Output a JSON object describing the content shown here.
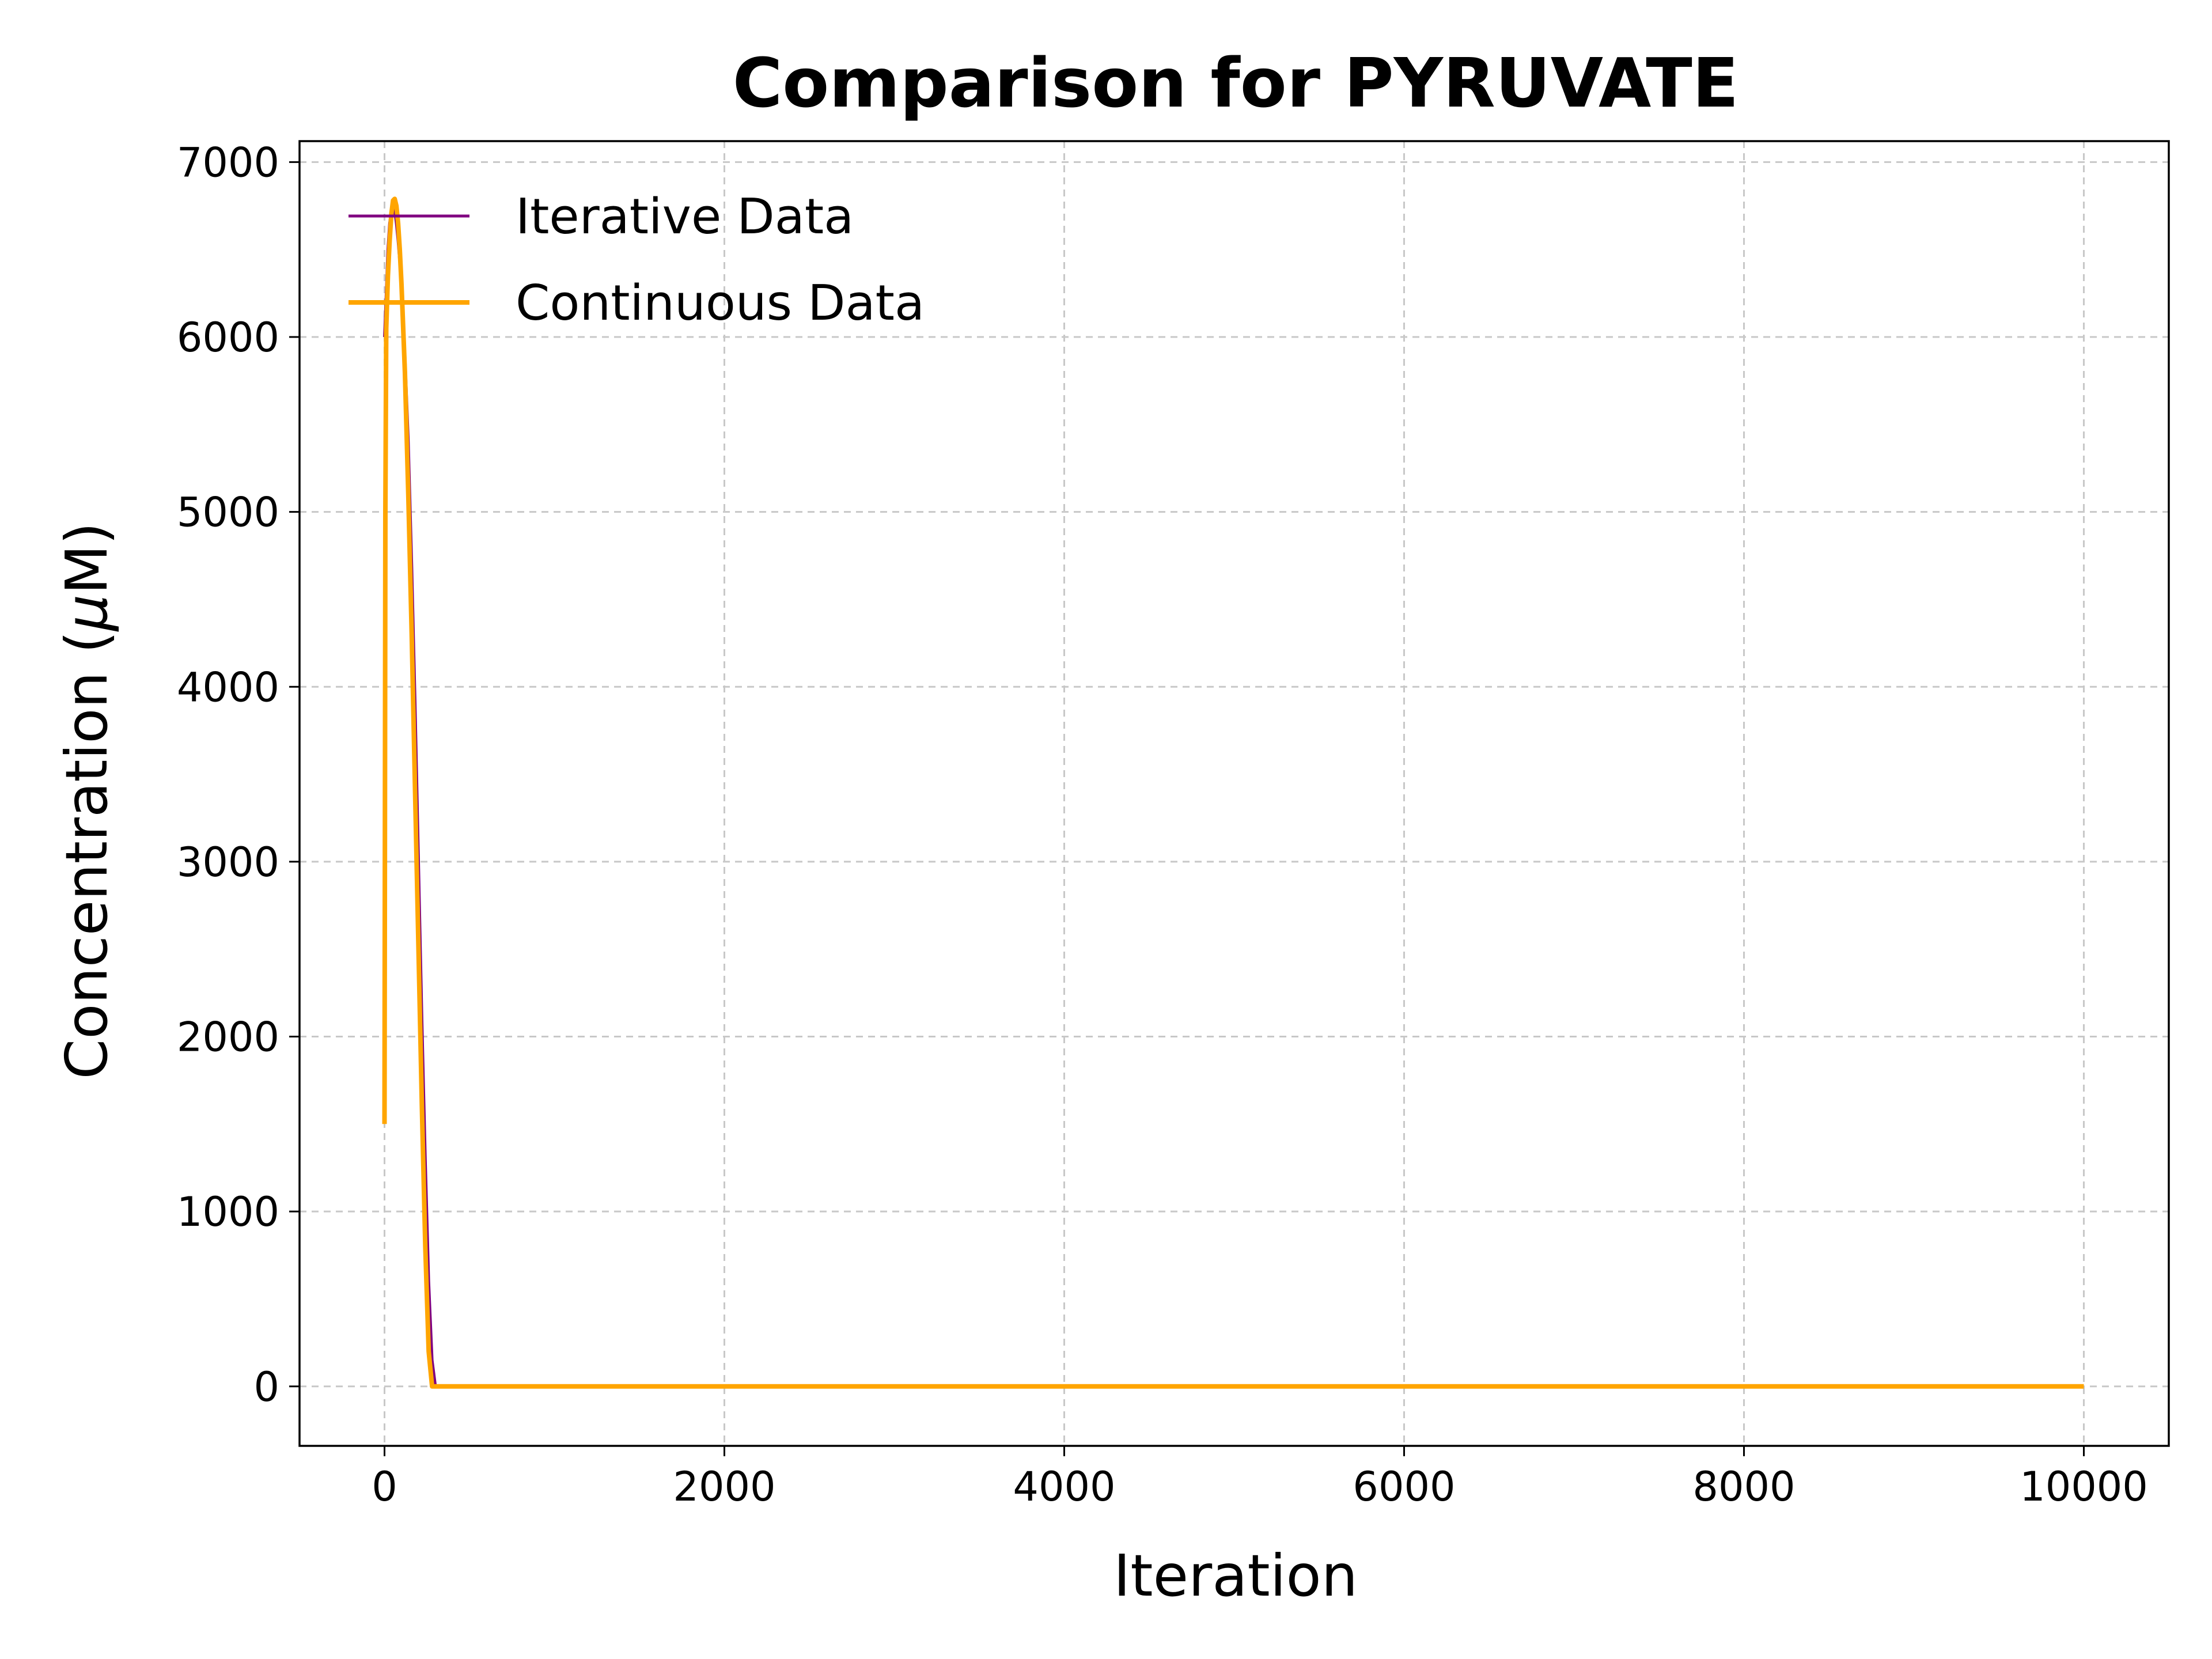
{
  "chart_data": {
    "type": "line",
    "title": "Comparison for PYRUVATE",
    "xlabel": "Iteration",
    "ylabel_prefix": "Concentration (",
    "ylabel_mu": "μ",
    "ylabel_suffix": "M)",
    "xlim": [
      -500,
      10500
    ],
    "ylim": [
      -340,
      7120
    ],
    "xticks": [
      0,
      2000,
      4000,
      6000,
      8000,
      10000
    ],
    "xtick_labels": [
      "0",
      "2000",
      "4000",
      "6000",
      "8000",
      "10000"
    ],
    "yticks": [
      0,
      1000,
      2000,
      3000,
      4000,
      5000,
      6000,
      7000
    ],
    "ytick_labels": [
      "0",
      "1000",
      "2000",
      "3000",
      "4000",
      "5000",
      "6000",
      "7000"
    ],
    "grid": true,
    "legend_position": "top-left",
    "series": [
      {
        "name": "Iterative Data",
        "color": "#800080",
        "x": [
          0,
          10,
          20,
          30,
          40,
          50,
          60,
          70,
          80,
          100,
          120,
          140,
          160,
          180,
          200,
          220,
          240,
          260,
          280,
          300,
          320,
          400,
          1000,
          5000,
          10000
        ],
        "y": [
          6000,
          6250,
          6500,
          6650,
          6720,
          6750,
          6720,
          6650,
          6550,
          6300,
          5900,
          5400,
          4700,
          3900,
          3000,
          2100,
          1300,
          600,
          150,
          0,
          0,
          0,
          0,
          0,
          0
        ]
      },
      {
        "name": "Continuous Data",
        "color": "#ffa500",
        "x": [
          0,
          5,
          10,
          20,
          30,
          40,
          50,
          60,
          70,
          80,
          90,
          100,
          120,
          140,
          160,
          180,
          200,
          220,
          240,
          260,
          280,
          300,
          1000,
          5000,
          10000
        ],
        "y": [
          1500,
          5000,
          6050,
          6350,
          6550,
          6700,
          6780,
          6790,
          6750,
          6650,
          6500,
          6300,
          5800,
          5100,
          4300,
          3400,
          2500,
          1600,
          800,
          200,
          0,
          0,
          0,
          0,
          0
        ]
      }
    ]
  }
}
